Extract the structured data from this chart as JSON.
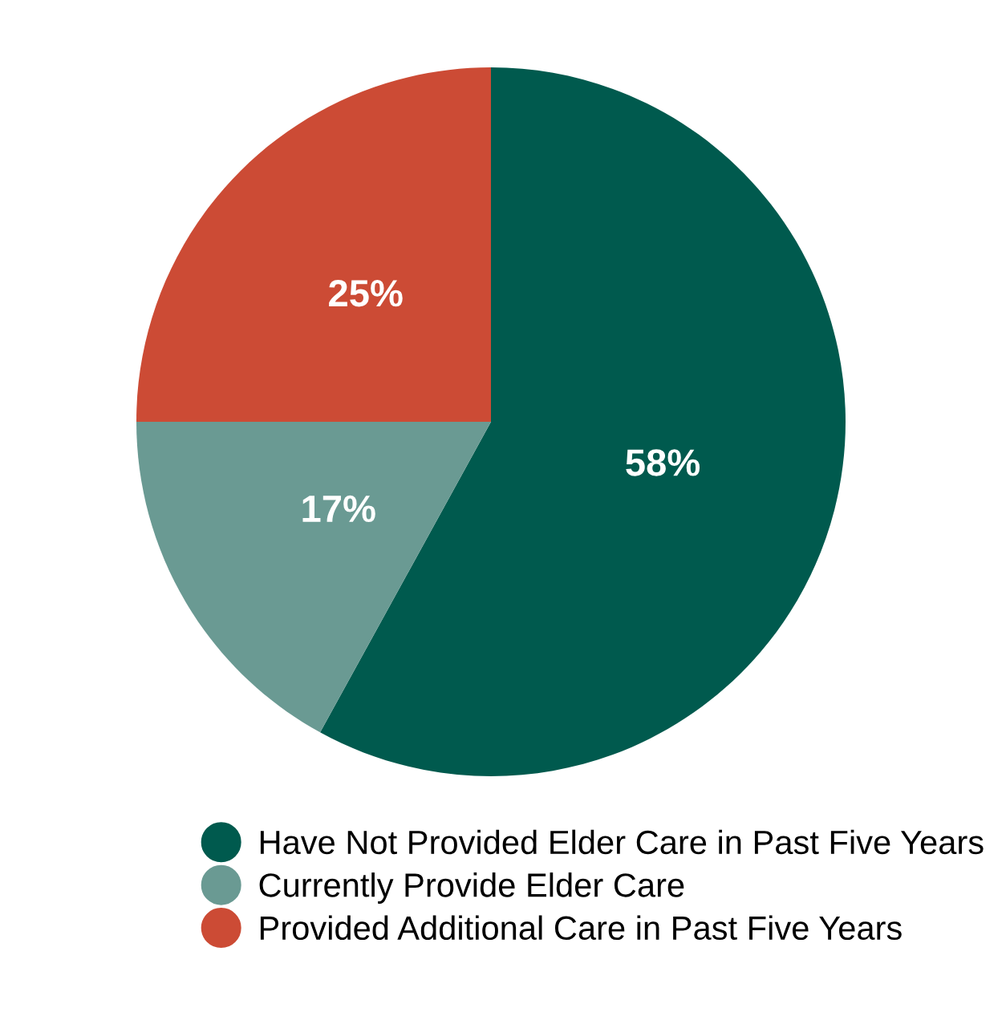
{
  "chart_data": {
    "type": "pie",
    "categories": [
      "Have Not Provided Elder Care in Past Five Years",
      "Currently Provide Elder Care",
      "Provided Additional Care in Past Five Years"
    ],
    "values": [
      58,
      17,
      25
    ],
    "colors": [
      "#005a4e",
      "#6a9a93",
      "#cc4b35"
    ],
    "value_labels": [
      "58%",
      "17%",
      "25%"
    ],
    "legend": "bottom"
  }
}
